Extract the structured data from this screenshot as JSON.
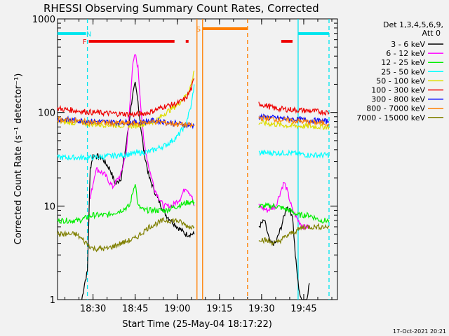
{
  "chart_data": {
    "type": "line",
    "title": "RHESSI Observing Summary Count Rates, Corrected",
    "xlabel": "Start Time (25-May-04 18:17:22)",
    "ylabel": "Corrected Count Rate (s⁻¹ detector⁻¹)",
    "yscale": "log",
    "ylim": [
      1,
      1000
    ],
    "xlim": [
      "18:17:22",
      "19:57:00"
    ],
    "x_ticks": [
      "18:30",
      "18:45",
      "19:00",
      "19:15",
      "19:30",
      "19:45"
    ],
    "y_ticks": [
      "1",
      "10",
      "100",
      "1000"
    ],
    "legend_position": "top-right",
    "legend_header": [
      "Det 1,3,4,5,6,9,",
      "Att 0"
    ],
    "timestamp": "17-Oct-2021 20:21",
    "flags": [
      {
        "label": "N",
        "color": "#00e5ee",
        "segments": [
          [
            "18:17:22",
            "18:27:30"
          ],
          [
            "19:43:00",
            "19:54:00"
          ]
        ],
        "marker": "18:28:30"
      },
      {
        "label": "F",
        "color": "#ee0000",
        "segments": [
          [
            "18:28:30",
            "18:59:00"
          ],
          [
            "19:03:00",
            "19:04:00"
          ],
          [
            "19:37:00",
            "19:41:00"
          ]
        ],
        "marker": "18:27:00"
      },
      {
        "label": "S",
        "color": "#ff7f00",
        "segments": [
          [
            "19:09:00",
            "19:25:00"
          ]
        ],
        "marker": "19:07:30"
      }
    ],
    "vlines": [
      {
        "time": "18:28:00",
        "color": "#00e5ee",
        "style": "dashed"
      },
      {
        "time": "19:43:00",
        "color": "#00e5ee",
        "style": "solid"
      },
      {
        "time": "19:54:00",
        "color": "#00e5ee",
        "style": "dashed"
      },
      {
        "time": "19:07:00",
        "color": "#ff7f00",
        "style": "solid"
      },
      {
        "time": "19:09:00",
        "color": "#ff7f00",
        "style": "solid"
      },
      {
        "time": "19:25:00",
        "color": "#ff7f00",
        "style": "dashed"
      }
    ],
    "series": [
      {
        "name": "3 - 6 keV",
        "color": "#000000",
        "segments": [
          {
            "x": [
              "18:26",
              "18:27",
              "18:28",
              "18:29",
              "18:30",
              "18:33",
              "18:36",
              "18:38",
              "18:40",
              "18:42",
              "18:44",
              "18:45",
              "18:46",
              "18:47",
              "18:48",
              "18:50",
              "18:53",
              "18:56",
              "19:00",
              "19:03",
              "19:05",
              "19:06"
            ],
            "y": [
              1,
              1.5,
              2,
              25,
              35,
              33,
              25,
              17,
              20,
              50,
              150,
              200,
              130,
              70,
              40,
              20,
              12,
              8,
              6,
              5,
              5,
              5
            ]
          },
          {
            "x": [
              "19:29",
              "19:31",
              "19:33",
              "19:35",
              "19:37",
              "19:39",
              "19:41",
              "19:42",
              "19:43",
              "19:44",
              "19:46",
              "19:47"
            ],
            "y": [
              6,
              7,
              4,
              4,
              6,
              10,
              8,
              3,
              1.5,
              1,
              1,
              1.5
            ]
          }
        ]
      },
      {
        "name": "6 - 12 keV",
        "color": "#ff00ff",
        "segments": [
          {
            "x": [
              "18:29",
              "18:31",
              "18:34",
              "18:37",
              "18:40",
              "18:42",
              "18:44",
              "18:45",
              "18:46",
              "18:47",
              "18:48",
              "18:50",
              "18:52",
              "18:55",
              "18:58",
              "19:01",
              "19:03",
              "19:05",
              "19:06"
            ],
            "y": [
              12,
              25,
              22,
              16,
              22,
              40,
              300,
              420,
              300,
              120,
              50,
              25,
              15,
              10,
              10,
              12,
              16,
              13,
              10
            ]
          },
          {
            "x": [
              "19:29",
              "19:32",
              "19:35",
              "19:37",
              "19:38",
              "19:39",
              "19:41",
              "19:43",
              "19:45",
              "19:47"
            ],
            "y": [
              10,
              9,
              10,
              15,
              18,
              15,
              9,
              7,
              6,
              6
            ]
          }
        ]
      },
      {
        "name": "12 - 25 keV",
        "color": "#00ee00",
        "segments": [
          {
            "x": [
              "18:17:22",
              "18:25",
              "18:30",
              "18:35",
              "18:40",
              "18:43",
              "18:45",
              "18:46",
              "18:48",
              "18:52",
              "18:56",
              "19:00",
              "19:04",
              "19:06"
            ],
            "y": [
              7,
              7,
              8,
              8,
              9,
              10,
              18,
              10,
              9,
              9,
              9,
              10,
              11,
              11
            ]
          },
          {
            "x": [
              "19:29",
              "19:35",
              "19:40",
              "19:43",
              "19:47",
              "19:51",
              "19:54"
            ],
            "y": [
              10,
              10,
              9,
              8,
              8,
              7,
              7
            ]
          }
        ]
      },
      {
        "name": "25 - 50 keV",
        "color": "#00ffff",
        "segments": [
          {
            "x": [
              "18:17:22",
              "18:30",
              "18:40",
              "18:50",
              "18:56",
              "19:00",
              "19:03",
              "19:05",
              "19:06"
            ],
            "y": [
              33,
              33,
              35,
              38,
              45,
              55,
              75,
              120,
              200
            ]
          },
          {
            "x": [
              "19:29",
              "19:40",
              "19:47",
              "19:54"
            ],
            "y": [
              37,
              37,
              35,
              35
            ]
          }
        ]
      },
      {
        "name": "50 - 100 keV",
        "color": "#dddd00",
        "segments": [
          {
            "x": [
              "18:17:22",
              "18:30",
              "18:45",
              "18:52",
              "18:56",
              "19:00",
              "19:03",
              "19:05",
              "19:06"
            ],
            "y": [
              80,
              75,
              72,
              80,
              100,
              120,
              150,
              200,
              280
            ]
          },
          {
            "x": [
              "19:29",
              "19:40",
              "19:54"
            ],
            "y": [
              78,
              72,
              70
            ]
          }
        ]
      },
      {
        "name": "100 - 300 keV",
        "color": "#ee0000",
        "segments": [
          {
            "x": [
              "18:17:22",
              "18:30",
              "18:45",
              "18:50",
              "18:55",
              "19:00",
              "19:03",
              "19:05",
              "19:06"
            ],
            "y": [
              110,
              100,
              95,
              100,
              115,
              125,
              140,
              180,
              230
            ]
          },
          {
            "x": [
              "19:29",
              "19:35",
              "19:45",
              "19:54"
            ],
            "y": [
              125,
              110,
              105,
              100
            ]
          }
        ]
      },
      {
        "name": "300 - 800 keV",
        "color": "#0000ff",
        "segments": [
          {
            "x": [
              "18:17:22",
              "18:30",
              "18:45",
              "18:52",
              "19:00",
              "19:06"
            ],
            "y": [
              85,
              80,
              78,
              82,
              76,
              72
            ]
          },
          {
            "x": [
              "19:29",
              "19:40",
              "19:54"
            ],
            "y": [
              90,
              85,
              80
            ]
          }
        ]
      },
      {
        "name": "800 - 7000 keV",
        "color": "#ff7f00",
        "segments": [
          {
            "x": [
              "18:17:22",
              "18:30",
              "18:45",
              "18:52",
              "19:00",
              "19:06"
            ],
            "y": [
              85,
              78,
              76,
              80,
              75,
              72
            ]
          },
          {
            "x": [
              "19:29",
              "19:40",
              "19:54"
            ],
            "y": [
              88,
              82,
              76
            ]
          }
        ]
      },
      {
        "name": "7000 - 15000 keV",
        "color": "#808000",
        "segments": [
          {
            "x": [
              "18:17:22",
              "18:24",
              "18:30",
              "18:35",
              "18:40",
              "18:45",
              "18:50",
              "18:55",
              "19:00",
              "19:04",
              "19:06"
            ],
            "y": [
              5,
              5,
              3.5,
              3.5,
              4,
              4.5,
              6,
              7,
              7,
              6,
              6
            ]
          },
          {
            "x": [
              "19:29",
              "19:35",
              "19:40",
              "19:45",
              "19:54"
            ],
            "y": [
              4.5,
              4,
              5,
              6,
              6
            ]
          }
        ]
      }
    ]
  }
}
